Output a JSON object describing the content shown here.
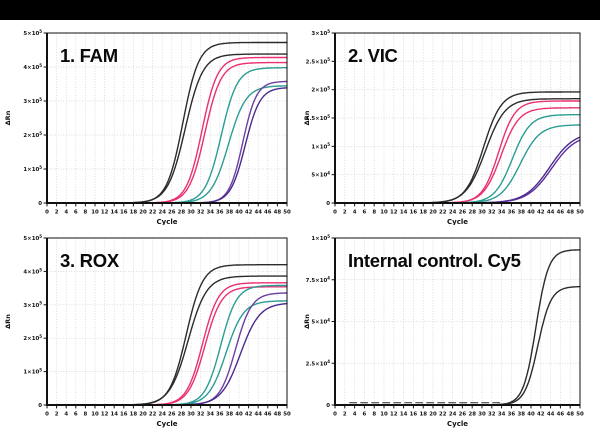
{
  "banner": {
    "background": "#000000"
  },
  "figure": {
    "background": "#ffffff"
  },
  "chart_data": {
    "type": "line",
    "description": "qPCR amplification curves in four detection channels",
    "xlabel": "Cycle",
    "ylabel": "ΔRn",
    "xlim": [
      0,
      50
    ],
    "x_ticks": [
      0,
      2,
      4,
      6,
      8,
      10,
      12,
      14,
      16,
      18,
      20,
      22,
      24,
      26,
      28,
      30,
      32,
      34,
      36,
      38,
      40,
      42,
      44,
      46,
      48,
      50
    ],
    "grid": "dashed-light-gray",
    "legend": "none",
    "curve_model": "logistic: value = plateau / (1 + exp(-slope_k * (cycle - midpoint_cycle)))",
    "panels": [
      {
        "id": "fam",
        "title": "1. FAM",
        "ylim": [
          0,
          500000
        ],
        "yticks": [
          {
            "value": 500000,
            "label": "5×10⁵"
          },
          {
            "value": 400000,
            "label": "4×10⁵"
          },
          {
            "value": 300000,
            "label": "3×10⁵"
          },
          {
            "value": 200000,
            "label": "2×10⁵"
          },
          {
            "value": 100000,
            "label": "1×10⁵"
          },
          {
            "value": 0,
            "label": "0"
          }
        ],
        "series": [
          {
            "name": "black-1",
            "color": "#2b2b2b",
            "midpoint_cycle": 28.3,
            "slope_k": 0.6,
            "plateau": 472000
          },
          {
            "name": "black-2",
            "color": "#2b2b2b",
            "midpoint_cycle": 28.8,
            "slope_k": 0.55,
            "plateau": 438000
          },
          {
            "name": "pink-1",
            "color": "#ea2f72",
            "midpoint_cycle": 32.3,
            "slope_k": 0.62,
            "plateau": 428000
          },
          {
            "name": "pink-2",
            "color": "#ea2f72",
            "midpoint_cycle": 32.9,
            "slope_k": 0.6,
            "plateau": 413000
          },
          {
            "name": "teal-1",
            "color": "#2a9d94",
            "midpoint_cycle": 36.3,
            "slope_k": 0.6,
            "plateau": 398000
          },
          {
            "name": "teal-2",
            "color": "#2a9d94",
            "midpoint_cycle": 37.8,
            "slope_k": 0.55,
            "plateau": 345000
          },
          {
            "name": "purple-1",
            "color": "#6b3fa0",
            "midpoint_cycle": 40.8,
            "slope_k": 0.7,
            "plateau": 358000
          },
          {
            "name": "purple-2",
            "color": "#4b2a8f",
            "midpoint_cycle": 41.3,
            "slope_k": 0.65,
            "plateau": 340000
          }
        ]
      },
      {
        "id": "vic",
        "title": "2. VIC",
        "ylim": [
          0,
          300000
        ],
        "yticks": [
          {
            "value": 300000,
            "label": "3×10⁵"
          },
          {
            "value": 250000,
            "label": "2.5×10⁵"
          },
          {
            "value": 200000,
            "label": "2×10⁵"
          },
          {
            "value": 150000,
            "label": "1.5×10⁵"
          },
          {
            "value": 100000,
            "label": "1×10⁵"
          },
          {
            "value": 50000,
            "label": "5×10⁴"
          },
          {
            "value": 0,
            "label": "0"
          }
        ],
        "series": [
          {
            "name": "black-1",
            "color": "#2b2b2b",
            "midpoint_cycle": 30.3,
            "slope_k": 0.55,
            "plateau": 196000
          },
          {
            "name": "black-2",
            "color": "#2b2b2b",
            "midpoint_cycle": 30.7,
            "slope_k": 0.5,
            "plateau": 184000
          },
          {
            "name": "pink-1",
            "color": "#ea2f72",
            "midpoint_cycle": 33.4,
            "slope_k": 0.6,
            "plateau": 180000
          },
          {
            "name": "pink-2",
            "color": "#ea2f72",
            "midpoint_cycle": 33.9,
            "slope_k": 0.55,
            "plateau": 168000
          },
          {
            "name": "teal-1",
            "color": "#2a9d94",
            "midpoint_cycle": 36.2,
            "slope_k": 0.55,
            "plateau": 156000
          },
          {
            "name": "teal-2",
            "color": "#2a9d94",
            "midpoint_cycle": 37.8,
            "slope_k": 0.5,
            "plateau": 138000
          },
          {
            "name": "purple-1",
            "color": "#4b2a8f",
            "midpoint_cycle": 43.8,
            "slope_k": 0.4,
            "plateau": 126000
          },
          {
            "name": "purple-2",
            "color": "#5a2f9b",
            "midpoint_cycle": 44.2,
            "slope_k": 0.4,
            "plateau": 122000
          }
        ]
      },
      {
        "id": "rox",
        "title": "3. ROX",
        "ylim": [
          0,
          500000
        ],
        "yticks": [
          {
            "value": 500000,
            "label": "5×10⁵"
          },
          {
            "value": 400000,
            "label": "4×10⁵"
          },
          {
            "value": 300000,
            "label": "3×10⁵"
          },
          {
            "value": 200000,
            "label": "2×10⁵"
          },
          {
            "value": 100000,
            "label": "1×10⁵"
          },
          {
            "value": 0,
            "label": "0"
          }
        ],
        "series": [
          {
            "name": "black-1",
            "color": "#2b2b2b",
            "midpoint_cycle": 29.0,
            "slope_k": 0.58,
            "plateau": 420000
          },
          {
            "name": "black-2",
            "color": "#2b2b2b",
            "midpoint_cycle": 29.4,
            "slope_k": 0.52,
            "plateau": 386000
          },
          {
            "name": "pink-1",
            "color": "#ea2f72",
            "midpoint_cycle": 32.4,
            "slope_k": 0.6,
            "plateau": 366000
          },
          {
            "name": "pink-2",
            "color": "#ea2f72",
            "midpoint_cycle": 32.9,
            "slope_k": 0.58,
            "plateau": 354000
          },
          {
            "name": "teal-1",
            "color": "#2a9d94",
            "midpoint_cycle": 36.2,
            "slope_k": 0.6,
            "plateau": 358000
          },
          {
            "name": "teal-2",
            "color": "#2a9d94",
            "midpoint_cycle": 37.3,
            "slope_k": 0.55,
            "plateau": 312000
          },
          {
            "name": "purple-1",
            "color": "#6b3fa0",
            "midpoint_cycle": 39.3,
            "slope_k": 0.6,
            "plateau": 336000
          },
          {
            "name": "purple-2",
            "color": "#4b2a8f",
            "midpoint_cycle": 40.3,
            "slope_k": 0.5,
            "plateau": 306000
          }
        ]
      },
      {
        "id": "cy5",
        "title": "Internal control. Cy5",
        "ylim": [
          0,
          100000
        ],
        "yticks": [
          {
            "value": 100000,
            "label": "1×10⁵"
          },
          {
            "value": 75000,
            "label": "7.5×10⁴"
          },
          {
            "value": 50000,
            "label": "5×10⁴"
          },
          {
            "value": 25000,
            "label": "2.5×10⁴"
          },
          {
            "value": 0,
            "label": "0"
          }
        ],
        "series": [
          {
            "name": "black-1",
            "color": "#2b2b2b",
            "midpoint_cycle": 41.0,
            "slope_k": 0.78,
            "plateau": 93000
          },
          {
            "name": "black-2",
            "color": "#2b2b2b",
            "midpoint_cycle": 41.4,
            "slope_k": 0.75,
            "plateau": 71000
          },
          {
            "name": "baseline-noise",
            "color": "#2b2b2b",
            "flat": 1300,
            "from": 3,
            "to": 34
          }
        ]
      }
    ]
  }
}
